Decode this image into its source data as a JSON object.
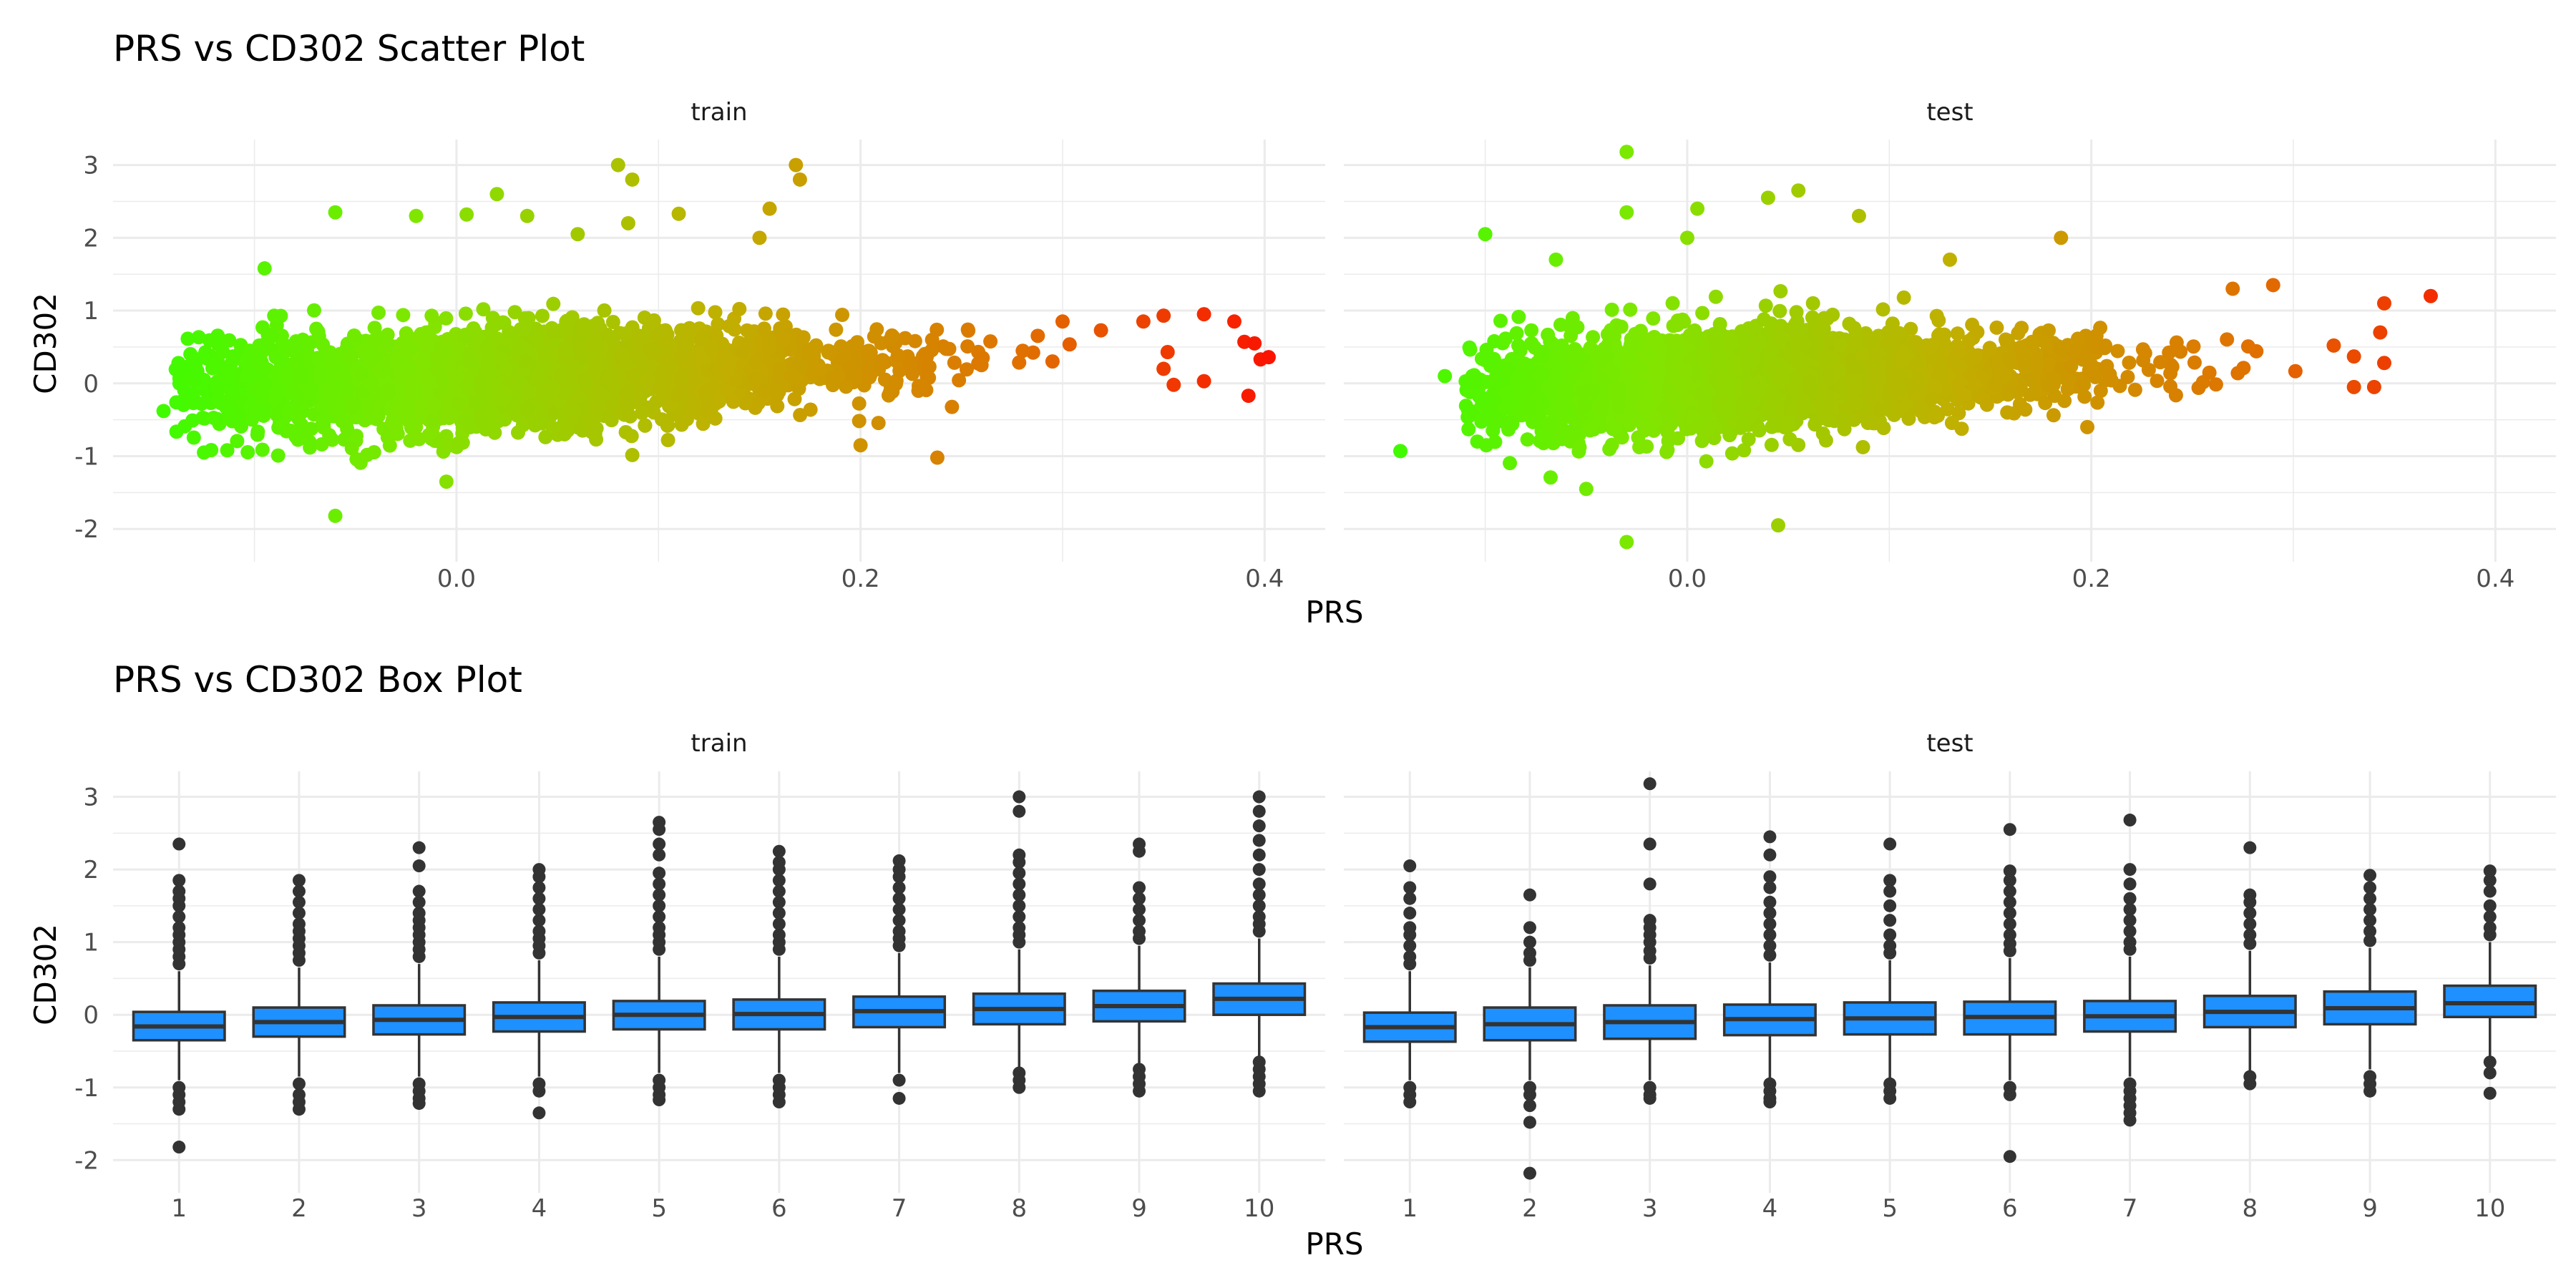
{
  "chart_data": [
    {
      "type": "scatter",
      "title": "PRS vs CD302 Scatter Plot",
      "xlabel": "PRS",
      "ylabel": "CD302",
      "color_scale": [
        "#33ff00",
        "#80e600",
        "#c0b000",
        "#e07000",
        "#ff0000"
      ],
      "grid": true,
      "panels": [
        {
          "name": "train",
          "xlim": [
            -0.17,
            0.43
          ],
          "ylim": [
            -2.45,
            3.35
          ],
          "xticks": [
            "0.0",
            "0.2",
            "0.4"
          ],
          "yticks": [
            "-2",
            "-1",
            "0",
            "1",
            "2",
            "3"
          ],
          "bulk": {
            "x_range": [
              -0.14,
              0.34
            ],
            "x_center": 0.03,
            "y_mean_at_min": -0.1,
            "y_slope": 1.1,
            "y_spread": 0.35
          },
          "outliers": [
            {
              "x": -0.145,
              "y": -0.38
            },
            {
              "x": -0.13,
              "y": 0.3
            },
            {
              "x": -0.125,
              "y": -0.95
            },
            {
              "x": -0.095,
              "y": 1.58
            },
            {
              "x": -0.06,
              "y": 2.35
            },
            {
              "x": -0.06,
              "y": -1.82
            },
            {
              "x": -0.02,
              "y": 2.3
            },
            {
              "x": -0.005,
              "y": -1.35
            },
            {
              "x": 0.005,
              "y": 2.32
            },
            {
              "x": 0.02,
              "y": 2.6
            },
            {
              "x": 0.035,
              "y": 2.3
            },
            {
              "x": 0.06,
              "y": 2.05
            },
            {
              "x": 0.08,
              "y": 3.0
            },
            {
              "x": 0.087,
              "y": 2.8
            },
            {
              "x": 0.085,
              "y": 2.2
            },
            {
              "x": 0.11,
              "y": 2.33
            },
            {
              "x": 0.15,
              "y": 2.0
            },
            {
              "x": 0.155,
              "y": 2.4
            },
            {
              "x": 0.168,
              "y": 3.0
            },
            {
              "x": 0.17,
              "y": 2.8
            },
            {
              "x": 0.2,
              "y": -0.85
            },
            {
              "x": 0.238,
              "y": -1.02
            },
            {
              "x": 0.3,
              "y": 0.85
            },
            {
              "x": 0.34,
              "y": 0.85
            },
            {
              "x": 0.35,
              "y": 0.93
            },
            {
              "x": 0.37,
              "y": 0.95
            },
            {
              "x": 0.385,
              "y": 0.85
            },
            {
              "x": 0.39,
              "y": 0.57
            },
            {
              "x": 0.395,
              "y": 0.55
            },
            {
              "x": 0.398,
              "y": 0.33
            },
            {
              "x": 0.402,
              "y": 0.36
            },
            {
              "x": 0.392,
              "y": -0.17
            },
            {
              "x": 0.35,
              "y": 0.2
            },
            {
              "x": 0.352,
              "y": 0.43
            },
            {
              "x": 0.355,
              "y": -0.02
            },
            {
              "x": 0.37,
              "y": 0.03
            }
          ]
        },
        {
          "name": "test",
          "xlim": [
            -0.17,
            0.43
          ],
          "ylim": [
            -2.45,
            3.35
          ],
          "xticks": [
            "0.0",
            "0.2",
            "0.4"
          ],
          "yticks": [
            "-2",
            "-1",
            "0",
            "1",
            "2",
            "3"
          ],
          "bulk": {
            "x_range": [
              -0.11,
              0.32
            ],
            "x_center": 0.03,
            "y_mean_at_min": -0.1,
            "y_slope": 1.1,
            "y_spread": 0.35
          },
          "outliers": [
            {
              "x": -0.142,
              "y": -0.93
            },
            {
              "x": -0.12,
              "y": 0.1
            },
            {
              "x": -0.1,
              "y": 2.05
            },
            {
              "x": -0.065,
              "y": 1.7
            },
            {
              "x": -0.05,
              "y": -1.45
            },
            {
              "x": -0.03,
              "y": 3.18
            },
            {
              "x": -0.03,
              "y": 2.35
            },
            {
              "x": -0.03,
              "y": -2.18
            },
            {
              "x": 0.0,
              "y": 2.0
            },
            {
              "x": 0.005,
              "y": 2.4
            },
            {
              "x": 0.04,
              "y": 2.55
            },
            {
              "x": 0.045,
              "y": -1.95
            },
            {
              "x": 0.055,
              "y": 2.65
            },
            {
              "x": 0.085,
              "y": 2.3
            },
            {
              "x": 0.13,
              "y": 1.7
            },
            {
              "x": 0.185,
              "y": 2.0
            },
            {
              "x": 0.27,
              "y": 1.3
            },
            {
              "x": 0.29,
              "y": 1.35
            },
            {
              "x": 0.32,
              "y": 0.52
            },
            {
              "x": 0.33,
              "y": 0.37
            },
            {
              "x": 0.345,
              "y": 0.28
            },
            {
              "x": 0.345,
              "y": 1.1
            },
            {
              "x": 0.343,
              "y": 0.7
            },
            {
              "x": 0.34,
              "y": -0.05
            },
            {
              "x": 0.368,
              "y": 1.2
            },
            {
              "x": 0.33,
              "y": -0.05
            }
          ]
        }
      ]
    },
    {
      "type": "box",
      "title": "PRS vs CD302 Box Plot",
      "xlabel": "PRS",
      "ylabel": "CD302",
      "box_color": "#1e90ff",
      "grid": true,
      "categories": [
        "1",
        "2",
        "3",
        "4",
        "5",
        "6",
        "7",
        "8",
        "9",
        "10"
      ],
      "panels": [
        {
          "name": "train",
          "ylim": [
            -2.45,
            3.35
          ],
          "yticks": [
            "-2",
            "-1",
            "0",
            "1",
            "2",
            "3"
          ],
          "boxes": [
            {
              "q1": -0.35,
              "median": -0.16,
              "q3": 0.04,
              "whisker_low": -0.9,
              "whisker_high": 0.6,
              "outliers_high": [
                0.7,
                0.8,
                0.9,
                1.0,
                1.1,
                1.2,
                1.35,
                1.5,
                1.6,
                1.7,
                1.85,
                2.35
              ],
              "outliers_low": [
                -1.0,
                -1.1,
                -1.2,
                -1.3,
                -1.82
              ]
            },
            {
              "q1": -0.3,
              "median": -0.1,
              "q3": 0.1,
              "whisker_low": -0.85,
              "whisker_high": 0.65,
              "outliers_high": [
                0.75,
                0.85,
                0.95,
                1.05,
                1.15,
                1.25,
                1.4,
                1.55,
                1.7,
                1.85
              ],
              "outliers_low": [
                -0.95,
                -1.1,
                -1.2,
                -1.3
              ]
            },
            {
              "q1": -0.27,
              "median": -0.07,
              "q3": 0.13,
              "whisker_low": -0.85,
              "whisker_high": 0.7,
              "outliers_high": [
                0.8,
                0.9,
                1.0,
                1.1,
                1.2,
                1.3,
                1.4,
                1.55,
                1.7,
                2.05,
                2.3
              ],
              "outliers_low": [
                -0.95,
                -1.05,
                -1.15,
                -1.22
              ]
            },
            {
              "q1": -0.23,
              "median": -0.03,
              "q3": 0.17,
              "whisker_low": -0.85,
              "whisker_high": 0.75,
              "outliers_high": [
                0.85,
                0.95,
                1.05,
                1.15,
                1.3,
                1.45,
                1.6,
                1.75,
                1.9,
                2.0
              ],
              "outliers_low": [
                -0.95,
                -1.05,
                -1.35
              ]
            },
            {
              "q1": -0.2,
              "median": 0.0,
              "q3": 0.19,
              "whisker_low": -0.8,
              "whisker_high": 0.8,
              "outliers_high": [
                0.9,
                1.0,
                1.1,
                1.2,
                1.35,
                1.5,
                1.65,
                1.8,
                1.95,
                2.2,
                2.35,
                2.55,
                2.65
              ],
              "outliers_low": [
                -0.9,
                -1.0,
                -1.1,
                -1.17
              ]
            },
            {
              "q1": -0.2,
              "median": 0.01,
              "q3": 0.21,
              "whisker_low": -0.8,
              "whisker_high": 0.8,
              "outliers_high": [
                0.9,
                1.0,
                1.1,
                1.25,
                1.4,
                1.55,
                1.7,
                1.85,
                2.0,
                2.1,
                2.25
              ],
              "outliers_low": [
                -0.9,
                -1.0,
                -1.1,
                -1.2
              ]
            },
            {
              "q1": -0.17,
              "median": 0.05,
              "q3": 0.25,
              "whisker_low": -0.8,
              "whisker_high": 0.85,
              "outliers_high": [
                0.95,
                1.05,
                1.15,
                1.3,
                1.45,
                1.6,
                1.75,
                1.9,
                2.0,
                2.12
              ],
              "outliers_low": [
                -0.9,
                -1.15
              ]
            },
            {
              "q1": -0.13,
              "median": 0.08,
              "q3": 0.29,
              "whisker_low": -0.75,
              "whisker_high": 0.9,
              "outliers_high": [
                1.0,
                1.1,
                1.2,
                1.35,
                1.5,
                1.65,
                1.8,
                1.95,
                2.1,
                2.2,
                2.8,
                3.0
              ],
              "outliers_low": [
                -0.8,
                -0.9,
                -1.0
              ]
            },
            {
              "q1": -0.09,
              "median": 0.12,
              "q3": 0.33,
              "whisker_low": -0.7,
              "whisker_high": 0.95,
              "outliers_high": [
                1.05,
                1.15,
                1.3,
                1.45,
                1.6,
                1.75,
                2.25,
                2.35
              ],
              "outliers_low": [
                -0.75,
                -0.85,
                -0.95,
                -1.05
              ]
            },
            {
              "q1": 0.0,
              "median": 0.22,
              "q3": 0.43,
              "whisker_low": -0.6,
              "whisker_high": 1.05,
              "outliers_high": [
                1.15,
                1.25,
                1.35,
                1.5,
                1.65,
                1.8,
                2.0,
                2.2,
                2.4,
                2.6,
                2.8,
                3.0
              ],
              "outliers_low": [
                -0.65,
                -0.75,
                -0.85,
                -0.95,
                -1.05
              ]
            }
          ]
        },
        {
          "name": "test",
          "ylim": [
            -2.45,
            3.35
          ],
          "yticks": [
            "-2",
            "-1",
            "0",
            "1",
            "2",
            "3"
          ],
          "boxes": [
            {
              "q1": -0.37,
              "median": -0.17,
              "q3": 0.03,
              "whisker_low": -0.9,
              "whisker_high": 0.6,
              "outliers_high": [
                0.7,
                0.8,
                0.95,
                1.1,
                1.2,
                1.4,
                1.6,
                1.75,
                2.05
              ],
              "outliers_low": [
                -1.0,
                -1.1,
                -1.2
              ]
            },
            {
              "q1": -0.35,
              "median": -0.13,
              "q3": 0.1,
              "whisker_low": -0.9,
              "whisker_high": 0.65,
              "outliers_high": [
                0.75,
                0.85,
                1.0,
                1.2,
                1.65
              ],
              "outliers_low": [
                -1.0,
                -1.1,
                -1.25,
                -1.48,
                -2.18
              ]
            },
            {
              "q1": -0.33,
              "median": -0.1,
              "q3": 0.13,
              "whisker_low": -0.9,
              "whisker_high": 0.68,
              "outliers_high": [
                0.78,
                0.88,
                1.0,
                1.1,
                1.2,
                1.3,
                1.8,
                2.35,
                3.18
              ],
              "outliers_low": [
                -1.0,
                -1.1,
                -1.15
              ]
            },
            {
              "q1": -0.28,
              "median": -0.06,
              "q3": 0.14,
              "whisker_low": -0.88,
              "whisker_high": 0.72,
              "outliers_high": [
                0.82,
                0.95,
                1.1,
                1.25,
                1.4,
                1.55,
                1.75,
                1.9,
                2.2,
                2.45
              ],
              "outliers_low": [
                -0.95,
                -1.05,
                -1.15,
                -1.2
              ]
            },
            {
              "q1": -0.27,
              "median": -0.05,
              "q3": 0.17,
              "whisker_low": -0.88,
              "whisker_high": 0.75,
              "outliers_high": [
                0.85,
                0.95,
                1.1,
                1.3,
                1.5,
                1.7,
                1.85,
                2.35
              ],
              "outliers_low": [
                -0.95,
                -1.05,
                -1.15
              ]
            },
            {
              "q1": -0.27,
              "median": -0.03,
              "q3": 0.18,
              "whisker_low": -0.9,
              "whisker_high": 0.78,
              "outliers_high": [
                0.88,
                0.98,
                1.1,
                1.25,
                1.4,
                1.55,
                1.7,
                1.85,
                1.98,
                2.55
              ],
              "outliers_low": [
                -1.0,
                -1.1,
                -1.95
              ]
            },
            {
              "q1": -0.23,
              "median": -0.02,
              "q3": 0.19,
              "whisker_low": -0.85,
              "whisker_high": 0.8,
              "outliers_high": [
                0.9,
                1.0,
                1.15,
                1.3,
                1.45,
                1.6,
                1.8,
                2.0,
                2.68
              ],
              "outliers_low": [
                -0.95,
                -1.05,
                -1.15,
                -1.25,
                -1.35,
                -1.45
              ]
            },
            {
              "q1": -0.17,
              "median": 0.04,
              "q3": 0.26,
              "whisker_low": -0.8,
              "whisker_high": 0.88,
              "outliers_high": [
                0.98,
                1.1,
                1.25,
                1.4,
                1.55,
                1.65,
                2.3
              ],
              "outliers_low": [
                -0.85,
                -0.95
              ]
            },
            {
              "q1": -0.13,
              "median": 0.09,
              "q3": 0.32,
              "whisker_low": -0.75,
              "whisker_high": 0.92,
              "outliers_high": [
                1.02,
                1.15,
                1.3,
                1.45,
                1.6,
                1.75,
                1.92
              ],
              "outliers_low": [
                -0.85,
                -0.95,
                -1.05
              ]
            },
            {
              "q1": -0.03,
              "median": 0.16,
              "q3": 0.4,
              "whisker_low": -0.6,
              "whisker_high": 1.0,
              "outliers_high": [
                1.1,
                1.2,
                1.35,
                1.5,
                1.7,
                1.85,
                1.98
              ],
              "outliers_low": [
                -0.65,
                -0.8,
                -1.08
              ]
            }
          ]
        }
      ]
    }
  ]
}
